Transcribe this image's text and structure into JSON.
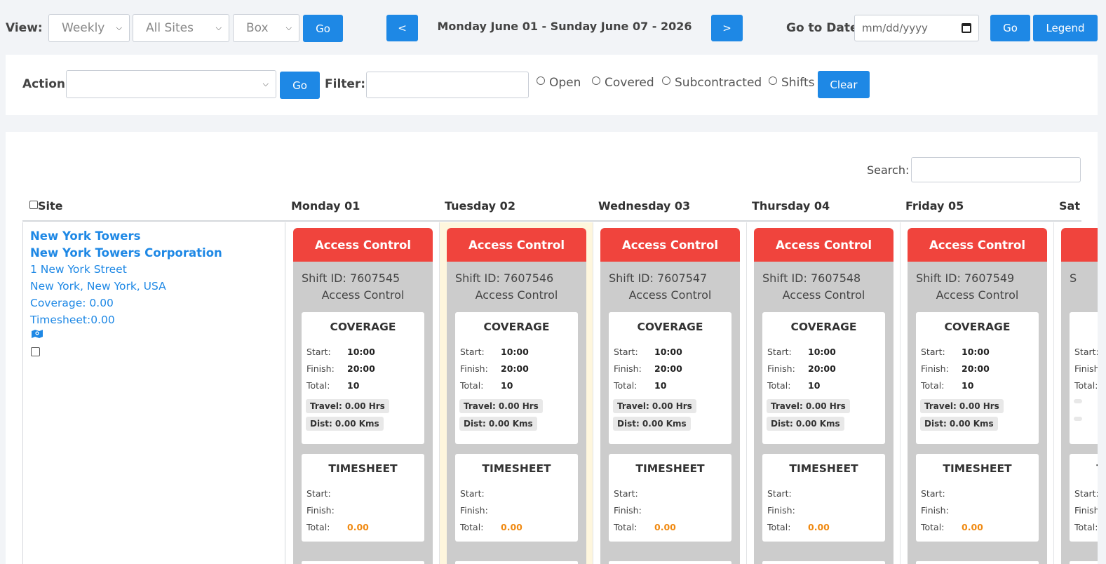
{
  "top": {
    "view_label": "View:",
    "view_select": "Weekly",
    "sites_select": "All Sites",
    "style_select": "Box",
    "go_label": "Go",
    "prev_label": "<",
    "next_label": ">",
    "date_range": "Monday June 01 - Sunday June 07 - 2026",
    "goto_label": "Go to Date:",
    "date_placeholder": "mm/dd/yyyy",
    "goto_go_label": "Go",
    "legend_label": "Legend"
  },
  "actions": {
    "action_label": "Action:",
    "action_go": "Go",
    "filter_label": "Filter:",
    "radios": [
      "Open",
      "Covered",
      "Subcontracted",
      "Shifts"
    ],
    "clear_label": "Clear"
  },
  "table": {
    "search_label": "Search:",
    "site_header": "Site",
    "days": [
      "Monday 01",
      "Tuesday 02",
      "Wednesday 03",
      "Thursday 04",
      "Friday 05",
      "Sat"
    ],
    "site": {
      "name": "New York Towers",
      "company": "New York Towers Corporation",
      "address": "1 New York Street",
      "city": "New York, New York, USA",
      "coverage": "Coverage: 0.00",
      "timesheet": "Timesheet:0.00"
    },
    "shifts": [
      {
        "title": "Access Control",
        "shift_id": "Shift ID: 7607545",
        "name": "Access Control",
        "start": "10:00",
        "finish": "20:00",
        "total": "10",
        "travel": "Travel: 0.00 Hrs",
        "dist": "Dist: 0.00 Kms",
        "ts_total": "0.00"
      },
      {
        "title": "Access Control",
        "shift_id": "Shift ID: 7607546",
        "name": "Access Control",
        "start": "10:00",
        "finish": "20:00",
        "total": "10",
        "travel": "Travel: 0.00 Hrs",
        "dist": "Dist: 0.00 Kms",
        "ts_total": "0.00"
      },
      {
        "title": "Access Control",
        "shift_id": "Shift ID: 7607547",
        "name": "Access Control",
        "start": "10:00",
        "finish": "20:00",
        "total": "10",
        "travel": "Travel: 0.00 Hrs",
        "dist": "Dist: 0.00 Kms",
        "ts_total": "0.00"
      },
      {
        "title": "Access Control",
        "shift_id": "Shift ID: 7607548",
        "name": "Access Control",
        "start": "10:00",
        "finish": "20:00",
        "total": "10",
        "travel": "Travel: 0.00 Hrs",
        "dist": "Dist: 0.00 Kms",
        "ts_total": "0.00"
      },
      {
        "title": "Access Control",
        "shift_id": "Shift ID: 7607549",
        "name": "Access Control",
        "start": "10:00",
        "finish": "20:00",
        "total": "10",
        "travel": "Travel: 0.00 Hrs",
        "dist": "Dist: 0.00 Kms",
        "ts_total": "0.00"
      },
      {
        "title": "",
        "shift_id": "S",
        "name": "",
        "start": "",
        "finish": "",
        "total": "",
        "travel": "",
        "dist": "",
        "ts_total": ""
      }
    ],
    "box_labels": {
      "coverage": "COVERAGE",
      "timesheet": "TIMESHEET",
      "start": "Start:",
      "finish": "Finish:",
      "total": "Total:"
    }
  },
  "colors": {
    "primary": "#1e88e5",
    "shift_header": "#f0443d",
    "today_bg": "#fef6dd",
    "orange_value": "#f08a12"
  }
}
